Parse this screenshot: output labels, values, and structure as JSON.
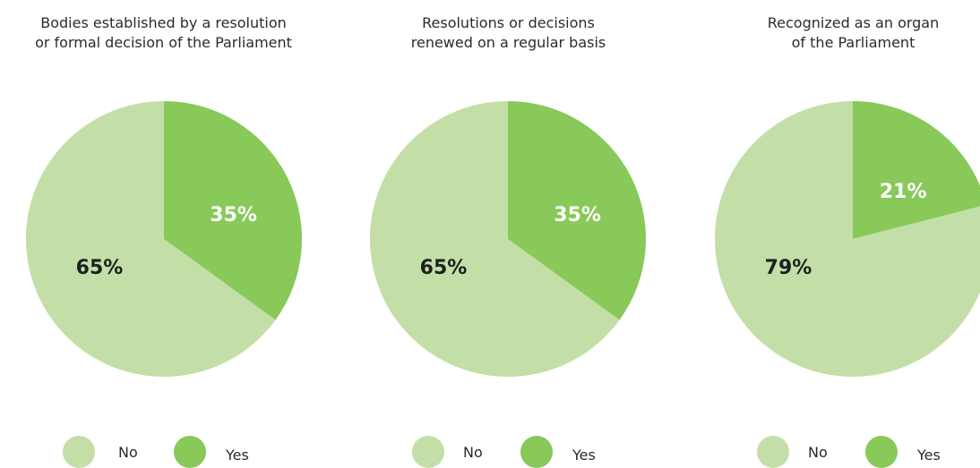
{
  "colors": {
    "no": "#c3dfa7",
    "yes": "#88c95a",
    "yes_text": "#ffffff",
    "no_text": "#1f1f1f"
  },
  "legend": {
    "no_label": "No",
    "yes_label": "Yes"
  },
  "chart_data": [
    {
      "type": "pie",
      "title": "Bodies established by a resolution\nor formal decision of the Parliament",
      "slices": [
        {
          "name": "No",
          "value": 65,
          "label": "65%"
        },
        {
          "name": "Yes",
          "value": 35,
          "label": "35%"
        }
      ]
    },
    {
      "type": "pie",
      "title": "Resolutions or decisions\nrenewed on a regular basis",
      "slices": [
        {
          "name": "No",
          "value": 65,
          "label": "65%"
        },
        {
          "name": "Yes",
          "value": 35,
          "label": "35%"
        }
      ]
    },
    {
      "type": "pie",
      "title": "Recognized as an organ\nof the Parliament",
      "slices": [
        {
          "name": "No",
          "value": 79,
          "label": "79%"
        },
        {
          "name": "Yes",
          "value": 21,
          "label": "21%"
        }
      ]
    }
  ]
}
